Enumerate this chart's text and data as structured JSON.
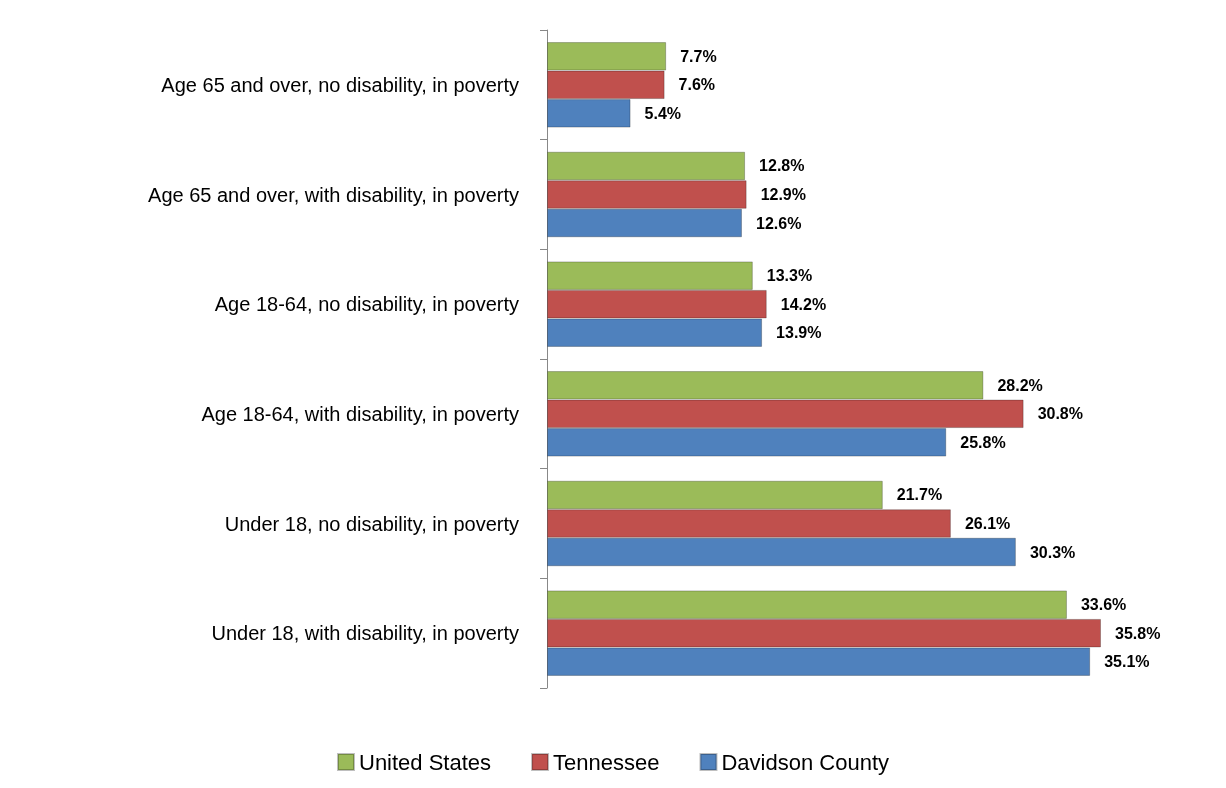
{
  "chart_data": {
    "type": "bar",
    "orientation": "horizontal",
    "categories": [
      "Age 65 and over, no disability, in poverty",
      "Age 65 and over, with disability, in poverty",
      "Age 18-64, no disability, in poverty",
      "Age 18-64, with disability, in poverty",
      "Under 18, no disability, in poverty",
      "Under 18, with disability, in poverty"
    ],
    "series": [
      {
        "name": "United States",
        "color": "#9bbb59",
        "values": [
          7.7,
          12.8,
          13.3,
          28.2,
          21.7,
          33.6
        ],
        "value_labels": [
          "7.7%",
          "12.8%",
          "13.3%",
          "28.2%",
          "21.7%",
          "33.6%"
        ]
      },
      {
        "name": "Tennessee",
        "color": "#c0504d",
        "values": [
          7.6,
          12.9,
          14.2,
          30.8,
          26.1,
          35.8
        ],
        "value_labels": [
          "7.6%",
          "12.9%",
          "14.2%",
          "30.8%",
          "26.1%",
          "35.8%"
        ]
      },
      {
        "name": "Davidson County",
        "color": "#4f81bd",
        "values": [
          5.4,
          12.6,
          13.9,
          25.8,
          30.3,
          35.1
        ],
        "value_labels": [
          "5.4%",
          "12.6%",
          "13.9%",
          "25.8%",
          "30.3%",
          "35.1%"
        ]
      }
    ],
    "legend": "bottom"
  }
}
